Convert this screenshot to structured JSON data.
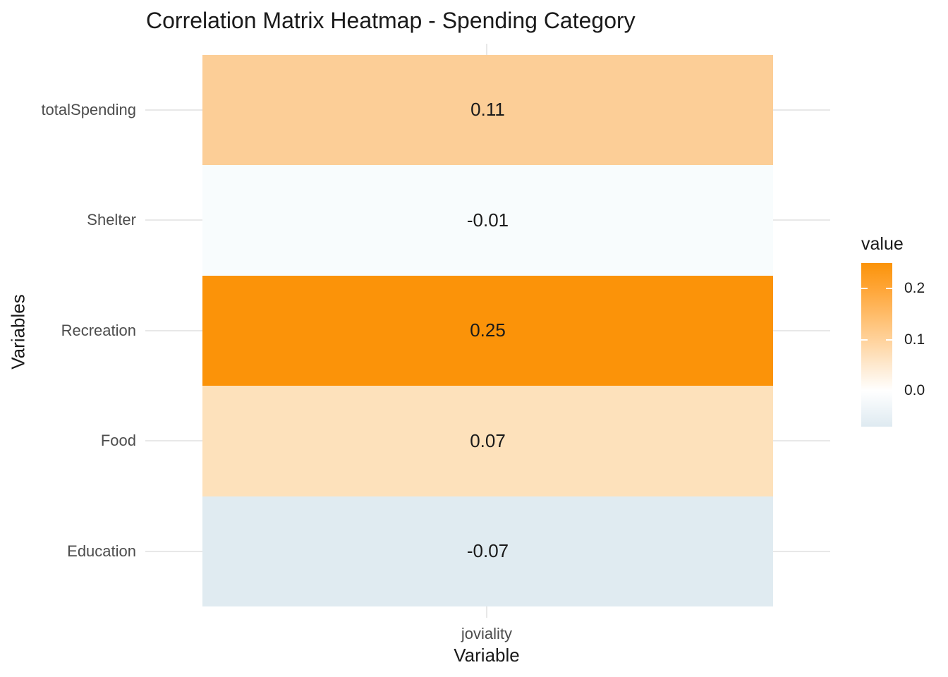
{
  "page": {
    "background": "#ffffff"
  },
  "chart_data": {
    "type": "heatmap",
    "title": "Correlation Matrix Heatmap - Spending Category",
    "xlabel": "Variable",
    "ylabel": "Variables",
    "x_categories": [
      "joviality"
    ],
    "y_categories": [
      "totalSpending",
      "Shelter",
      "Recreation",
      "Food",
      "Education"
    ],
    "values": [
      [
        0.11
      ],
      [
        -0.01
      ],
      [
        0.25
      ],
      [
        0.07
      ],
      [
        -0.07
      ]
    ],
    "value_labels": [
      [
        "0.11"
      ],
      [
        "-0.01"
      ],
      [
        "0.25"
      ],
      [
        "0.07"
      ],
      [
        "-0.07"
      ]
    ],
    "cell_colors": [
      [
        "#FCCE97"
      ],
      [
        "#F8FCFD"
      ],
      [
        "#FB9309"
      ],
      [
        "#FDE1BB"
      ],
      [
        "#E0EBF1"
      ]
    ],
    "legend": {
      "title": "value",
      "min": -0.07,
      "max": 0.25,
      "ticks": [
        {
          "label": "0.2",
          "value": 0.2
        },
        {
          "label": "0.1",
          "value": 0.1
        },
        {
          "label": "0.0",
          "value": 0.0
        }
      ],
      "gradient_stops": [
        {
          "value": 0.25,
          "color": "#FB9309"
        },
        {
          "value": 0.2,
          "color": "#FFA536"
        },
        {
          "value": 0.1,
          "color": "#FFD29B"
        },
        {
          "value": 0.05,
          "color": "#FEE9CF"
        },
        {
          "value": 0.0,
          "color": "#FFFFFF"
        },
        {
          "value": -0.07,
          "color": "#DEEAF1"
        }
      ]
    },
    "grid": true,
    "legend_position": "right",
    "styles": {
      "grid_color": "#E8E8E8",
      "axis_text_color": "#4D4D4D",
      "text_color": "#1A1A1A"
    }
  }
}
